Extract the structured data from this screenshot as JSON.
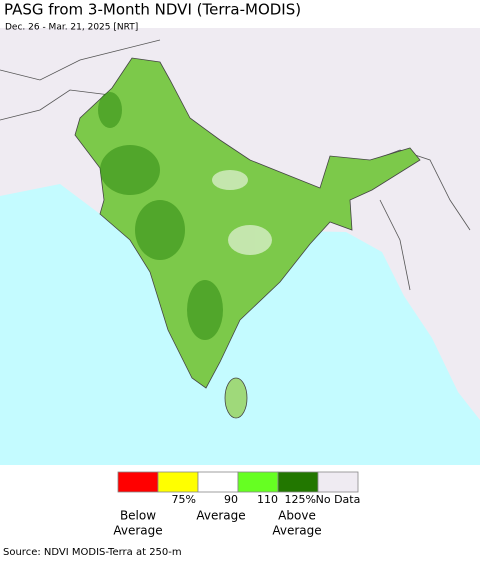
{
  "header": {
    "title": "PASG from 3-Month NDVI (Terra-MODIS)",
    "subtitle": "Dec. 26 - Mar. 21, 2025 [NRT]"
  },
  "map": {
    "ocean_color": "#c4fbff",
    "land_color": "#efebf2",
    "region_color": "#7cc94a"
  },
  "legend": {
    "colors": [
      "#ff0000",
      "#ffff00",
      "#ffffff",
      "#66ff22",
      "#227700",
      "#efebf2"
    ],
    "tick_labels": [
      "75%",
      "90",
      "110",
      "125%",
      "No Data"
    ],
    "captions": [
      [
        "Below",
        "Average"
      ],
      [
        "Average"
      ],
      [
        "Above",
        "Average"
      ]
    ]
  },
  "source": "Source: NDVI MODIS-Terra at 250-m"
}
